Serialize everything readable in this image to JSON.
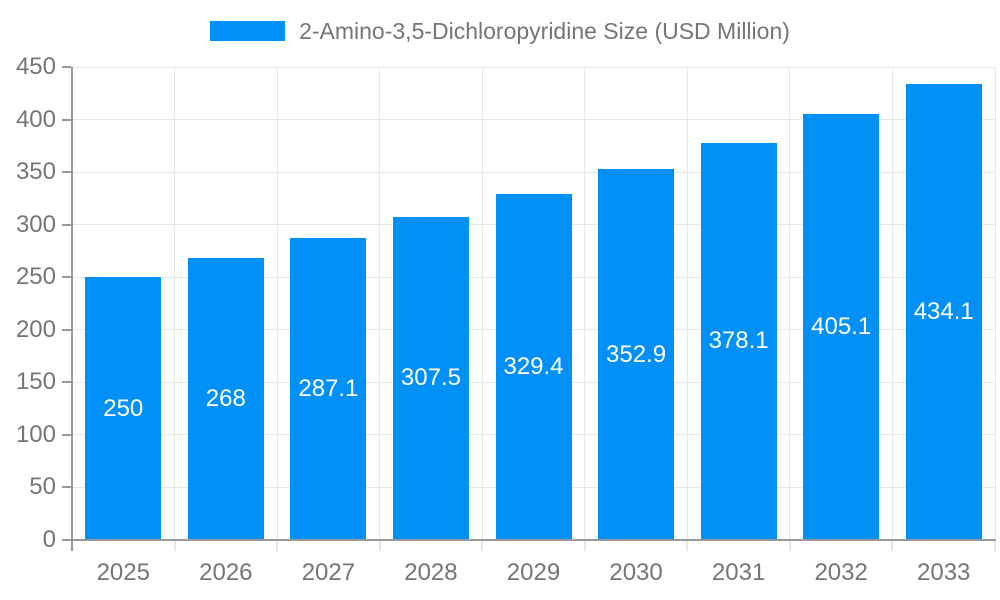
{
  "chart_data": {
    "type": "bar",
    "title": "2-Amino-3,5-Dichloropyridine Size (USD Million)",
    "legend": {
      "label": "2-Amino-3,5-Dichloropyridine Size (USD Million)",
      "position": "top"
    },
    "categories": [
      "2025",
      "2026",
      "2027",
      "2028",
      "2029",
      "2030",
      "2031",
      "2032",
      "2033"
    ],
    "values": [
      250,
      268,
      287.1,
      307.5,
      329.4,
      352.9,
      378.1,
      405.1,
      434.1
    ],
    "value_labels": [
      "250",
      "268",
      "287.1",
      "307.5",
      "329.4",
      "352.9",
      "378.1",
      "405.1",
      "434.1"
    ],
    "xlabel": "",
    "ylabel": "",
    "ylim": [
      0,
      450
    ],
    "yticks": [
      0,
      50,
      100,
      150,
      200,
      250,
      300,
      350,
      400,
      450
    ],
    "grid": true,
    "colors": {
      "bar": "#0190f8",
      "tick_text": "#757575",
      "bar_value_text": "#ffffff",
      "gridline": "#e6e6e6",
      "axis": "#999999",
      "background": "#ffffff"
    }
  }
}
